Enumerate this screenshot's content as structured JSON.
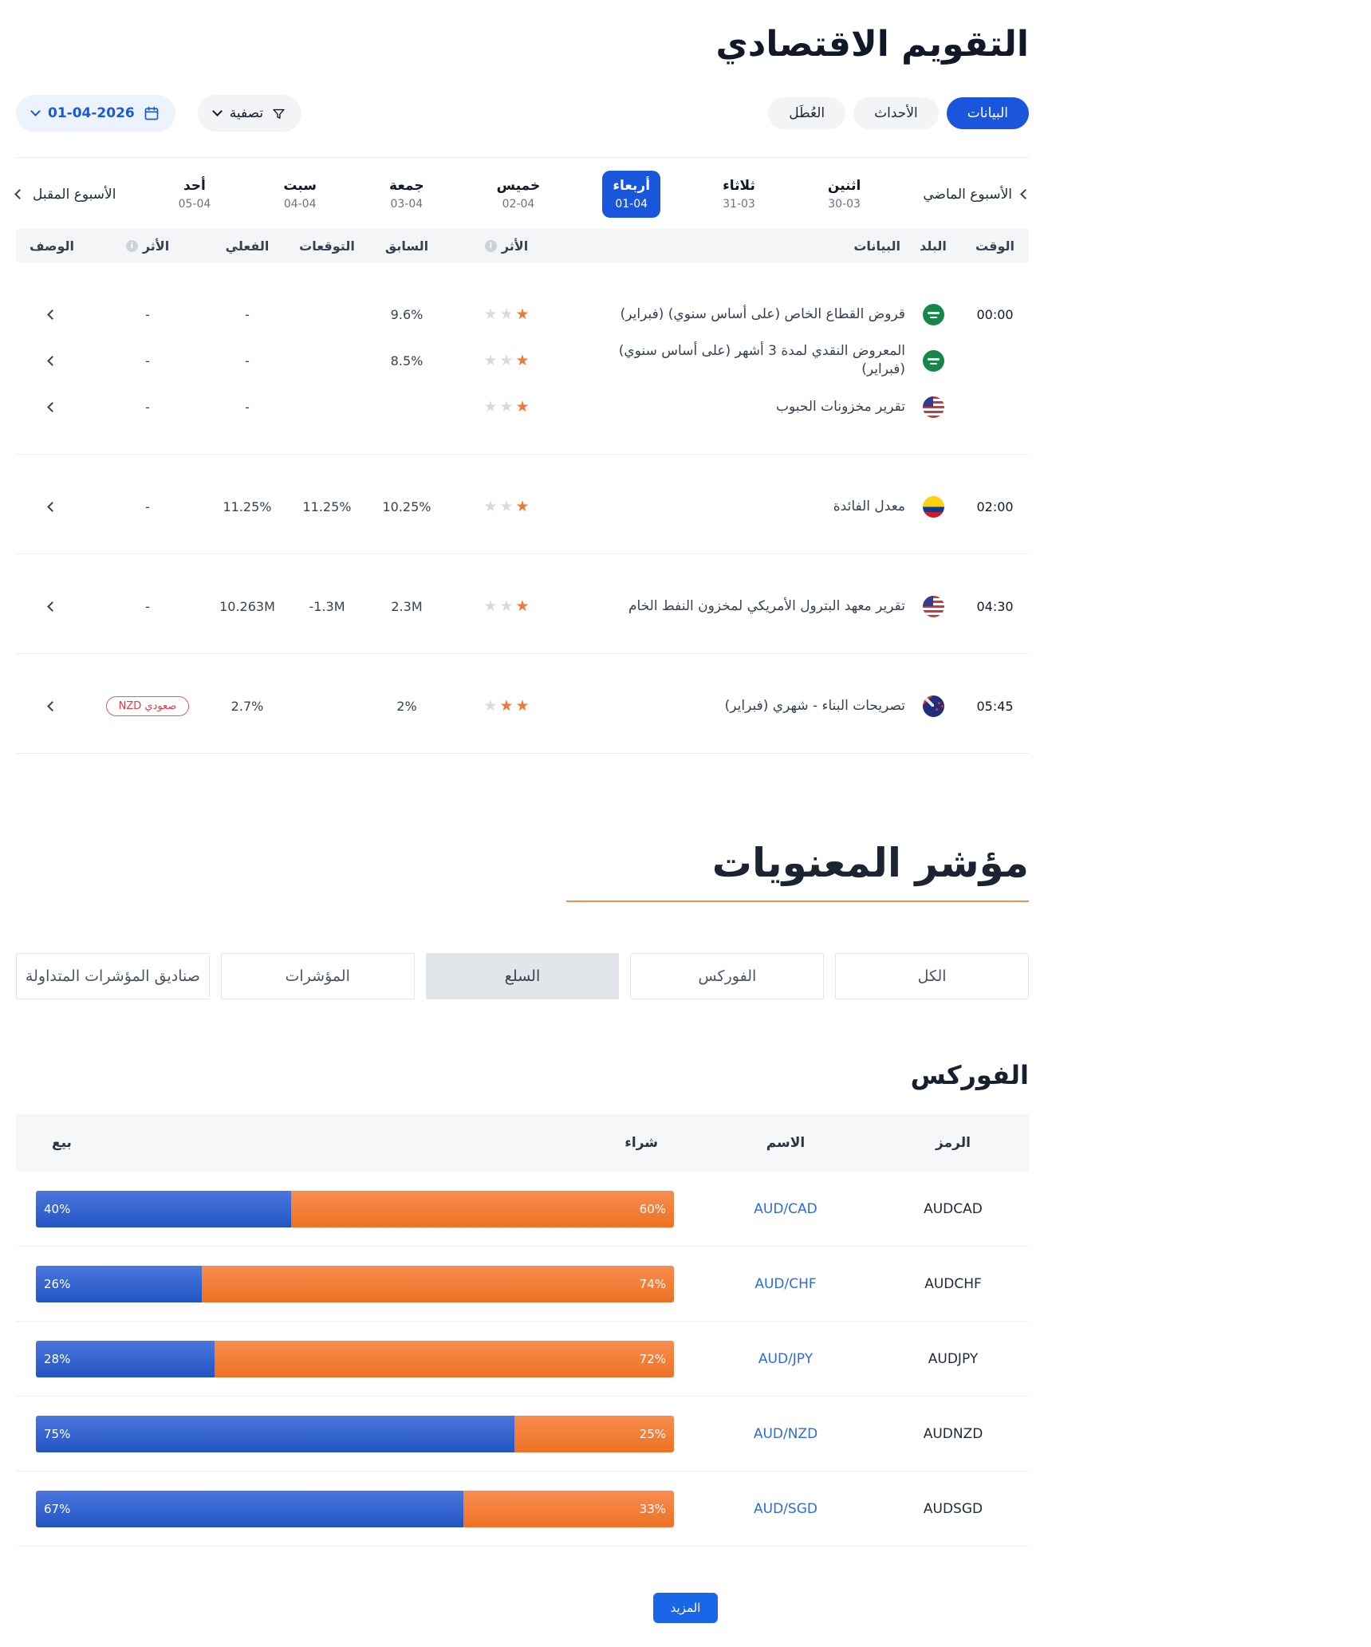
{
  "header": {
    "title": "التقويم الاقتصادي",
    "tabs": [
      {
        "label": "البيانات",
        "active": true
      },
      {
        "label": "الأحداث",
        "active": false
      },
      {
        "label": "العُطَل",
        "active": false
      }
    ],
    "date_value": "01-04-2026",
    "filter_label": "تصفية"
  },
  "week_nav": {
    "prev_label": "الأسبوع الماضي",
    "next_label": "الأسبوع المقبل",
    "days": [
      {
        "name": "اثنين",
        "date": "30-03",
        "active": false
      },
      {
        "name": "ثلاثاء",
        "date": "31-03",
        "active": false
      },
      {
        "name": "أربعاء",
        "date": "01-04",
        "active": true
      },
      {
        "name": "خميس",
        "date": "02-04",
        "active": false
      },
      {
        "name": "جمعة",
        "date": "03-04",
        "active": false
      },
      {
        "name": "سبت",
        "date": "04-04",
        "active": false
      },
      {
        "name": "أحد",
        "date": "05-04",
        "active": false
      }
    ]
  },
  "calendar": {
    "headers": {
      "time": "الوقت",
      "country": "البلد",
      "data": "البيانات",
      "impact": "الأثر",
      "previous": "السابق",
      "forecast": "التوقعات",
      "actual": "الفعلي",
      "effect": "الأثر",
      "description": "الوصف"
    },
    "groups": [
      {
        "time": "00:00",
        "rows": [
          {
            "country": "saudi-arabia",
            "name": "قروض القطاع الخاص (على أساس سنوي) (فبراير)",
            "impact": 1,
            "previous": "9.6%",
            "forecast": "",
            "actual": "-",
            "effect": "-"
          },
          {
            "country": "saudi-arabia",
            "name": "المعروض النقدي لمدة 3 أشهر (على أساس سنوي) (فبراير)",
            "impact": 1,
            "previous": "8.5%",
            "forecast": "",
            "actual": "-",
            "effect": "-"
          },
          {
            "country": "united-states",
            "name": "تقرير مخزونات الحبوب",
            "impact": 1,
            "previous": "",
            "forecast": "",
            "actual": "-",
            "effect": "-"
          }
        ]
      },
      {
        "time": "02:00",
        "rows": [
          {
            "country": "colombia",
            "name": "معدل الفائدة",
            "impact": 1,
            "previous": "10.25%",
            "forecast": "11.25%",
            "actual": "11.25%",
            "effect": "-"
          }
        ]
      },
      {
        "time": "04:30",
        "rows": [
          {
            "country": "united-states",
            "name": "تقرير معهد البترول الأمريكي لمخزون النفط الخام",
            "impact": 1,
            "previous": "2.3M",
            "forecast": "-1.3M",
            "actual": "10.263M",
            "effect": "-"
          }
        ]
      },
      {
        "time": "05:45",
        "rows": [
          {
            "country": "new-zealand",
            "name": "تصريحات البناء - شهري (فبراير)",
            "impact": 2,
            "previous": "2%",
            "forecast": "",
            "actual": "2.7%",
            "effect": "",
            "effect_badge": "صعودي NZD"
          }
        ]
      }
    ]
  },
  "sentiment": {
    "title": "مؤشر المعنويات",
    "tabs": [
      {
        "label": "الكل",
        "active": false
      },
      {
        "label": "الفوركس",
        "active": false
      },
      {
        "label": "السلع",
        "active": true
      },
      {
        "label": "المؤشرات",
        "active": false
      },
      {
        "label": "صناديق المؤشرات المتداولة",
        "active": false
      }
    ],
    "section_title": "الفوركس",
    "table": {
      "headers": {
        "symbol": "الرمز",
        "name": "الاسم",
        "buy": "شراء",
        "sell": "بيع"
      },
      "rows": [
        {
          "symbol": "AUDCAD",
          "name": "AUD/CAD",
          "sell": 40,
          "buy": 60
        },
        {
          "symbol": "AUDCHF",
          "name": "AUD/CHF",
          "sell": 26,
          "buy": 74
        },
        {
          "symbol": "AUDJPY",
          "name": "AUD/JPY",
          "sell": 28,
          "buy": 72
        },
        {
          "symbol": "AUDNZD",
          "name": "AUD/NZD",
          "sell": 75,
          "buy": 25
        },
        {
          "symbol": "AUDSGD",
          "name": "AUD/SGD",
          "sell": 67,
          "buy": 33
        }
      ]
    },
    "more_label": "المزيد"
  },
  "colors": {
    "accent_blue": "#1a56db",
    "bar_blue": "#2c5cc5",
    "bar_orange": "#f1782f",
    "star_orange": "#f0793a",
    "badge_red": "#dc3c46",
    "underline_orange": "#e8935a",
    "link_blue": "#2e6bd6"
  }
}
